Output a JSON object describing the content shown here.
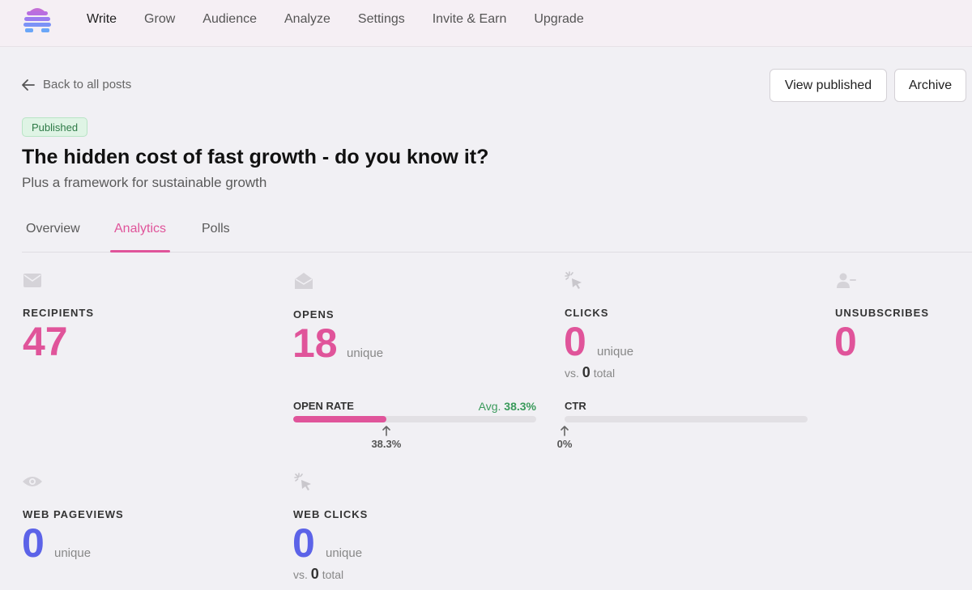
{
  "nav": {
    "items": [
      {
        "label": "Write",
        "active": true
      },
      {
        "label": "Grow"
      },
      {
        "label": "Audience"
      },
      {
        "label": "Analyze"
      },
      {
        "label": "Settings"
      },
      {
        "label": "Invite & Earn"
      },
      {
        "label": "Upgrade"
      }
    ]
  },
  "header": {
    "back_label": "Back to all posts",
    "view_published_label": "View published",
    "archive_label": "Archive"
  },
  "post": {
    "status": "Published",
    "title": "The hidden cost of fast growth - do you know it?",
    "subtitle": "Plus a framework for sustainable growth"
  },
  "tabs": [
    {
      "label": "Overview"
    },
    {
      "label": "Analytics",
      "active": true
    },
    {
      "label": "Polls"
    }
  ],
  "stats": {
    "recipients": {
      "label": "RECIPIENTS",
      "value": "47",
      "icon": "envelope-icon"
    },
    "opens": {
      "label": "OPENS",
      "value": "18",
      "unit": "unique",
      "icon": "envelope-open-icon"
    },
    "clicks": {
      "label": "CLICKS",
      "value": "0",
      "unit": "unique",
      "vs_prefix": "vs.",
      "vs_value": "0",
      "vs_suffix": "total",
      "icon": "cursor-click-icon"
    },
    "unsubscribes": {
      "label": "UNSUBSCRIBES",
      "value": "0",
      "icon": "user-minus-icon"
    },
    "web_pageviews": {
      "label": "WEB PAGEVIEWS",
      "value": "0",
      "unit": "unique",
      "icon": "eye-icon"
    },
    "web_clicks": {
      "label": "WEB CLICKS",
      "value": "0",
      "unit": "unique",
      "vs_prefix": "vs.",
      "vs_value": "0",
      "vs_suffix": "total",
      "icon": "cursor-click-icon"
    }
  },
  "open_rate": {
    "label": "OPEN RATE",
    "avg_prefix": "Avg.",
    "avg_value": "38.3%",
    "value_label": "38.3%",
    "fraction": 0.383
  },
  "ctr": {
    "label": "CTR",
    "value_label": "0%",
    "fraction": 0
  },
  "colors": {
    "accent": "#e0549a",
    "blue_stat": "#5c63e8",
    "badge_green": "#2d7a46"
  }
}
